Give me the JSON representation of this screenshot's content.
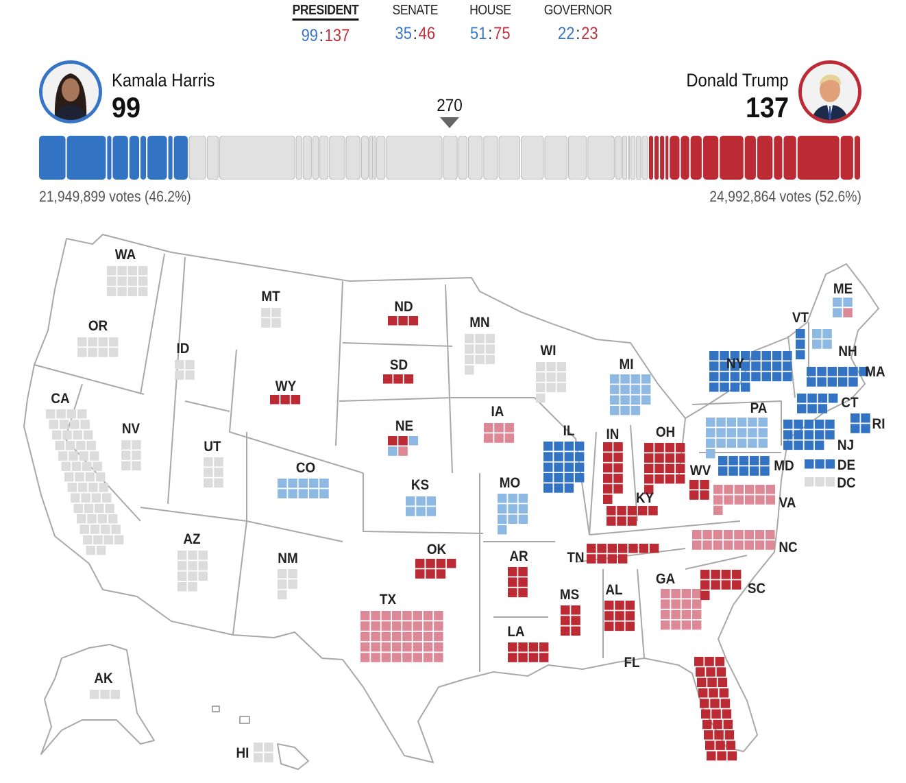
{
  "tabs": [
    {
      "label": "PRESIDENT",
      "dem": "99",
      "rep": "137",
      "active": true
    },
    {
      "label": "SENATE",
      "dem": "35",
      "rep": "46",
      "active": false
    },
    {
      "label": "HOUSE",
      "dem": "51",
      "rep": "75",
      "active": false
    },
    {
      "label": "GOVERNOR",
      "dem": "22",
      "rep": "23",
      "active": false
    }
  ],
  "separator": ":",
  "threshold": "270",
  "total_ev": 538,
  "candidates": {
    "dem": {
      "name": "Kamala Harris",
      "ev": "99",
      "votes": "21,949,899 votes (46.2%)",
      "color": "#3574c6"
    },
    "rep": {
      "name": "Donald Trump",
      "ev": "137",
      "votes": "24,992,864 votes (52.6%)",
      "color": "#bd2a35"
    }
  },
  "colors": {
    "D": "#3373c4",
    "d": "#8db9e2",
    "R": "#bc2a34",
    "r": "#dc8896",
    "n": "#dcdcdc",
    "border": "#a8a8a8"
  },
  "states": [
    {
      "abbr": "WA",
      "ev": 12,
      "status": "n"
    },
    {
      "abbr": "OR",
      "ev": 8,
      "status": "n"
    },
    {
      "abbr": "CA",
      "ev": 54,
      "status": "n"
    },
    {
      "abbr": "ID",
      "ev": 4,
      "status": "n"
    },
    {
      "abbr": "NV",
      "ev": 6,
      "status": "n"
    },
    {
      "abbr": "MT",
      "ev": 4,
      "status": "n"
    },
    {
      "abbr": "WY",
      "ev": 3,
      "status": "R"
    },
    {
      "abbr": "UT",
      "ev": 6,
      "status": "n"
    },
    {
      "abbr": "AZ",
      "ev": 11,
      "status": "n"
    },
    {
      "abbr": "CO",
      "ev": 10,
      "status": "d"
    },
    {
      "abbr": "NM",
      "ev": 5,
      "status": "n"
    },
    {
      "abbr": "ND",
      "ev": 3,
      "status": "R"
    },
    {
      "abbr": "SD",
      "ev": 3,
      "status": "R"
    },
    {
      "abbr": "NE",
      "ev": 5,
      "status": "mixed",
      "tiles": [
        "R",
        "R",
        "d",
        "d",
        "r"
      ]
    },
    {
      "abbr": "KS",
      "ev": 6,
      "status": "d"
    },
    {
      "abbr": "OK",
      "ev": 7,
      "status": "R"
    },
    {
      "abbr": "TX",
      "ev": 40,
      "status": "r"
    },
    {
      "abbr": "MN",
      "ev": 10,
      "status": "n"
    },
    {
      "abbr": "IA",
      "ev": 6,
      "status": "r"
    },
    {
      "abbr": "MO",
      "ev": 10,
      "status": "d"
    },
    {
      "abbr": "AR",
      "ev": 6,
      "status": "R"
    },
    {
      "abbr": "LA",
      "ev": 8,
      "status": "R"
    },
    {
      "abbr": "WI",
      "ev": 10,
      "status": "n"
    },
    {
      "abbr": "IL",
      "ev": 19,
      "status": "D"
    },
    {
      "abbr": "MI",
      "ev": 15,
      "status": "d"
    },
    {
      "abbr": "IN",
      "ev": 11,
      "status": "R"
    },
    {
      "abbr": "OH",
      "ev": 17,
      "status": "R"
    },
    {
      "abbr": "KY",
      "ev": 8,
      "status": "R"
    },
    {
      "abbr": "TN",
      "ev": 11,
      "status": "R"
    },
    {
      "abbr": "MS",
      "ev": 6,
      "status": "R"
    },
    {
      "abbr": "AL",
      "ev": 9,
      "status": "R"
    },
    {
      "abbr": "GA",
      "ev": 16,
      "status": "r"
    },
    {
      "abbr": "FL",
      "ev": 30,
      "status": "R"
    },
    {
      "abbr": "SC",
      "ev": 9,
      "status": "R"
    },
    {
      "abbr": "NC",
      "ev": 16,
      "status": "r"
    },
    {
      "abbr": "VA",
      "ev": 13,
      "status": "r"
    },
    {
      "abbr": "WV",
      "ev": 4,
      "status": "R"
    },
    {
      "abbr": "PA",
      "ev": 19,
      "status": "d"
    },
    {
      "abbr": "NY",
      "ev": 28,
      "status": "D"
    },
    {
      "abbr": "VT",
      "ev": 3,
      "status": "D"
    },
    {
      "abbr": "NH",
      "ev": 4,
      "status": "d"
    },
    {
      "abbr": "ME",
      "ev": 4,
      "status": "mixed",
      "tiles": [
        "d",
        "d",
        "d",
        "r"
      ]
    },
    {
      "abbr": "MA",
      "ev": 11,
      "status": "D"
    },
    {
      "abbr": "CT",
      "ev": 7,
      "status": "D"
    },
    {
      "abbr": "RI",
      "ev": 4,
      "status": "D"
    },
    {
      "abbr": "NJ",
      "ev": 14,
      "status": "D"
    },
    {
      "abbr": "DE",
      "ev": 3,
      "status": "D"
    },
    {
      "abbr": "MD",
      "ev": 10,
      "status": "D"
    },
    {
      "abbr": "DC",
      "ev": 3,
      "status": "n"
    },
    {
      "abbr": "AK",
      "ev": 3,
      "status": "n"
    },
    {
      "abbr": "HI",
      "ev": 4,
      "status": "n"
    }
  ]
}
